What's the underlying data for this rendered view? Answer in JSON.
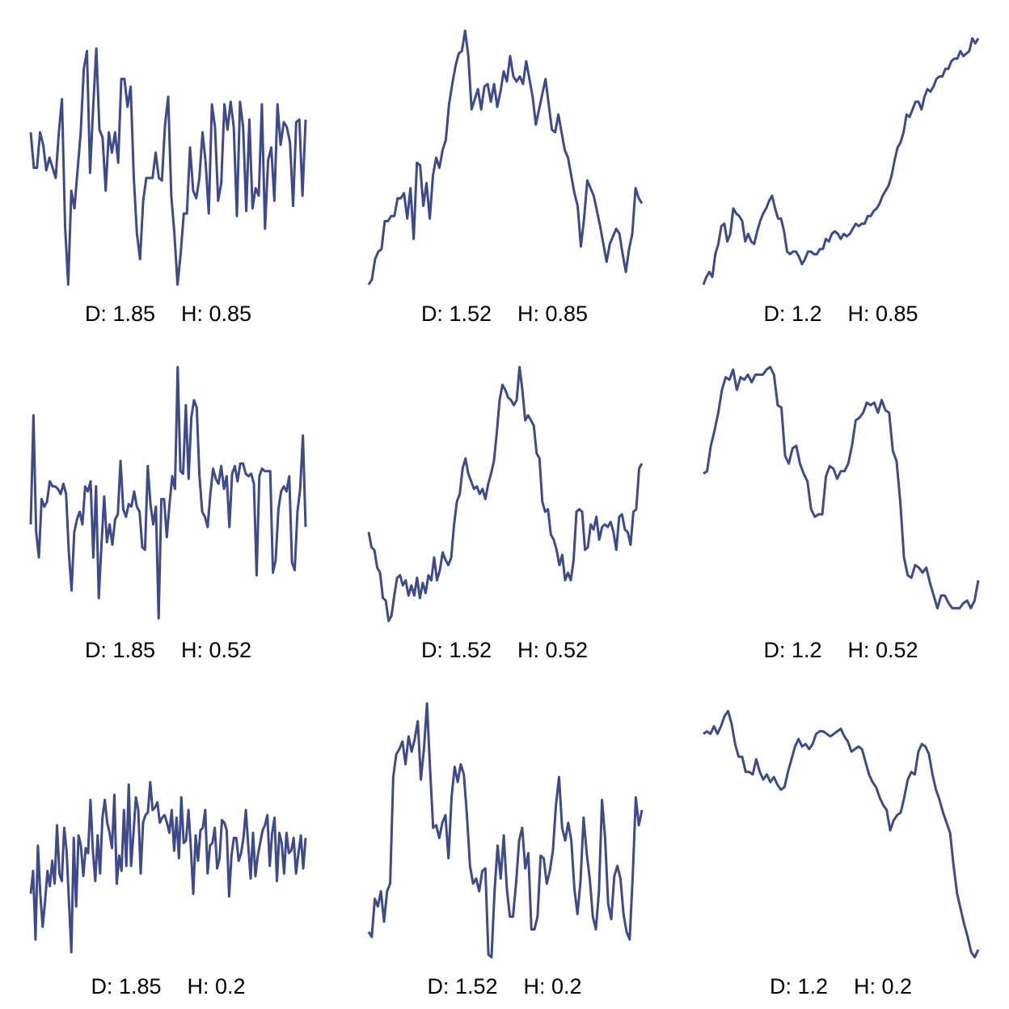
{
  "chart_data": [
    {
      "type": "line",
      "caption_d": "D: 1.85",
      "caption_h": "H: 0.85",
      "color": "#3e4a89",
      "series": [
        {
          "values": [
            0.6,
            0.46,
            0.46,
            0.6,
            0.55,
            0.45,
            0.5,
            0.46,
            0.42,
            0.6,
            0.73,
            0.23,
            0.0,
            0.37,
            0.3,
            0.45,
            0.6,
            0.85,
            0.92,
            0.44,
            0.7,
            0.93,
            0.61,
            0.58,
            0.37,
            0.6,
            0.52,
            0.6,
            0.48,
            0.81,
            0.81,
            0.7,
            0.78,
            0.42,
            0.2,
            0.1,
            0.33,
            0.42,
            0.42,
            0.42,
            0.52,
            0.42,
            0.41,
            0.63,
            0.74,
            0.35,
            0.2,
            0.0,
            0.12,
            0.28,
            0.28,
            0.54,
            0.37,
            0.34,
            0.42,
            0.6,
            0.48,
            0.28,
            0.71,
            0.62,
            0.33,
            0.4,
            0.71,
            0.61,
            0.72,
            0.62,
            0.27,
            0.72,
            0.62,
            0.29,
            0.65,
            0.3,
            0.38,
            0.35,
            0.71,
            0.22,
            0.49,
            0.54,
            0.33,
            0.71,
            0.55,
            0.64,
            0.62,
            0.56,
            0.31,
            0.64,
            0.65,
            0.35,
            0.65
          ]
        }
      ]
    },
    {
      "type": "line",
      "caption_d": "D: 1.52",
      "caption_h": "H: 0.85",
      "color": "#3e4a89",
      "series": [
        {
          "values": [
            0.0,
            0.02,
            0.1,
            0.13,
            0.14,
            0.25,
            0.25,
            0.27,
            0.27,
            0.34,
            0.34,
            0.36,
            0.26,
            0.38,
            0.18,
            0.48,
            0.47,
            0.31,
            0.4,
            0.26,
            0.43,
            0.5,
            0.46,
            0.53,
            0.57,
            0.71,
            0.79,
            0.86,
            0.91,
            0.92,
            1.0,
            0.9,
            0.69,
            0.73,
            0.77,
            0.69,
            0.78,
            0.79,
            0.72,
            0.79,
            0.7,
            0.76,
            0.84,
            0.8,
            0.9,
            0.82,
            0.8,
            0.82,
            0.79,
            0.88,
            0.81,
            0.74,
            0.63,
            0.69,
            0.75,
            0.81,
            0.71,
            0.61,
            0.6,
            0.67,
            0.6,
            0.53,
            0.5,
            0.43,
            0.36,
            0.31,
            0.15,
            0.26,
            0.41,
            0.38,
            0.35,
            0.29,
            0.23,
            0.16,
            0.09,
            0.16,
            0.19,
            0.22,
            0.2,
            0.12,
            0.05,
            0.14,
            0.2,
            0.38,
            0.34,
            0.32
          ]
        }
      ]
    },
    {
      "type": "line",
      "caption_d": "D: 1.2",
      "caption_h": "H: 0.85",
      "color": "#3e4a89",
      "series": [
        {
          "values": [
            0.0,
            0.03,
            0.05,
            0.03,
            0.12,
            0.16,
            0.23,
            0.24,
            0.17,
            0.2,
            0.3,
            0.28,
            0.27,
            0.25,
            0.17,
            0.2,
            0.17,
            0.16,
            0.21,
            0.25,
            0.28,
            0.3,
            0.33,
            0.35,
            0.3,
            0.26,
            0.26,
            0.21,
            0.13,
            0.12,
            0.13,
            0.13,
            0.11,
            0.08,
            0.1,
            0.13,
            0.13,
            0.12,
            0.12,
            0.14,
            0.14,
            0.18,
            0.17,
            0.2,
            0.21,
            0.2,
            0.18,
            0.2,
            0.19,
            0.2,
            0.22,
            0.24,
            0.23,
            0.24,
            0.24,
            0.27,
            0.27,
            0.29,
            0.3,
            0.32,
            0.35,
            0.37,
            0.39,
            0.43,
            0.49,
            0.54,
            0.56,
            0.6,
            0.67,
            0.66,
            0.69,
            0.72,
            0.72,
            0.69,
            0.74,
            0.77,
            0.76,
            0.78,
            0.81,
            0.82,
            0.82,
            0.85,
            0.85,
            0.88,
            0.89,
            0.89,
            0.92,
            0.9,
            0.91,
            0.92,
            0.97,
            0.95,
            0.97
          ]
        }
      ]
    },
    {
      "type": "line",
      "caption_d": "D: 1.85",
      "caption_h": "H: 0.52",
      "color": "#3e4a89",
      "series": [
        {
          "values": [
            0.38,
            0.81,
            0.35,
            0.25,
            0.48,
            0.45,
            0.47,
            0.55,
            0.53,
            0.53,
            0.52,
            0.5,
            0.54,
            0.5,
            0.27,
            0.12,
            0.35,
            0.4,
            0.43,
            0.38,
            0.53,
            0.51,
            0.55,
            0.25,
            0.53,
            0.09,
            0.3,
            0.49,
            0.31,
            0.38,
            0.3,
            0.4,
            0.42,
            0.63,
            0.44,
            0.41,
            0.46,
            0.45,
            0.51,
            0.45,
            0.43,
            0.29,
            0.28,
            0.61,
            0.46,
            0.38,
            0.45,
            0.01,
            0.48,
            0.48,
            0.33,
            0.46,
            0.57,
            0.52,
            1.0,
            0.59,
            0.58,
            0.85,
            0.56,
            0.8,
            0.87,
            0.84,
            0.57,
            0.43,
            0.41,
            0.37,
            0.5,
            0.6,
            0.56,
            0.54,
            0.61,
            0.52,
            0.57,
            0.37,
            0.58,
            0.61,
            0.55,
            0.62,
            0.62,
            0.58,
            0.57,
            0.58,
            0.54,
            0.18,
            0.57,
            0.6,
            0.59,
            0.59,
            0.59,
            0.19,
            0.24,
            0.44,
            0.51,
            0.53,
            0.51,
            0.57,
            0.23,
            0.2,
            0.43,
            0.52,
            0.73,
            0.37
          ]
        }
      ]
    },
    {
      "type": "line",
      "caption_d": "D: 1.52",
      "caption_h": "H: 0.52",
      "color": "#3e4a89",
      "series": [
        {
          "values": [
            0.35,
            0.29,
            0.28,
            0.21,
            0.19,
            0.09,
            0.08,
            0.0,
            0.02,
            0.1,
            0.17,
            0.18,
            0.14,
            0.16,
            0.1,
            0.14,
            0.1,
            0.17,
            0.09,
            0.15,
            0.11,
            0.18,
            0.16,
            0.25,
            0.16,
            0.2,
            0.27,
            0.24,
            0.22,
            0.25,
            0.38,
            0.47,
            0.5,
            0.6,
            0.64,
            0.58,
            0.55,
            0.52,
            0.53,
            0.5,
            0.52,
            0.48,
            0.54,
            0.58,
            0.63,
            0.74,
            0.87,
            0.93,
            0.91,
            0.88,
            0.87,
            0.85,
            0.87,
            1.0,
            0.91,
            0.79,
            0.81,
            0.79,
            0.77,
            0.66,
            0.64,
            0.47,
            0.43,
            0.44,
            0.34,
            0.32,
            0.28,
            0.22,
            0.26,
            0.16,
            0.19,
            0.16,
            0.24,
            0.43,
            0.44,
            0.43,
            0.28,
            0.29,
            0.38,
            0.36,
            0.41,
            0.32,
            0.37,
            0.38,
            0.37,
            0.39,
            0.35,
            0.28,
            0.41,
            0.42,
            0.36,
            0.35,
            0.3,
            0.43,
            0.44,
            0.6,
            0.62
          ]
        }
      ]
    },
    {
      "type": "line",
      "caption_d": "D: 1.2",
      "caption_h": "H: 0.52",
      "color": "#3e4a89",
      "series": [
        {
          "values": [
            0.58,
            0.59,
            0.69,
            0.75,
            0.82,
            0.91,
            0.96,
            0.95,
            0.99,
            0.91,
            0.96,
            0.95,
            0.97,
            0.94,
            0.97,
            0.97,
            0.97,
            0.99,
            1.0,
            0.97,
            0.85,
            0.84,
            0.65,
            0.62,
            0.68,
            0.69,
            0.62,
            0.58,
            0.55,
            0.44,
            0.41,
            0.42,
            0.42,
            0.57,
            0.61,
            0.6,
            0.56,
            0.59,
            0.59,
            0.62,
            0.69,
            0.79,
            0.8,
            0.82,
            0.86,
            0.85,
            0.86,
            0.82,
            0.87,
            0.83,
            0.82,
            0.67,
            0.63,
            0.47,
            0.25,
            0.18,
            0.17,
            0.22,
            0.21,
            0.19,
            0.21,
            0.15,
            0.1,
            0.05,
            0.1,
            0.1,
            0.07,
            0.05,
            0.05,
            0.05,
            0.07,
            0.08,
            0.05,
            0.08,
            0.16
          ]
        }
      ]
    },
    {
      "type": "line",
      "caption_d": "D: 1.85",
      "caption_h": "H: 0.2",
      "color": "#3e4a89",
      "series": [
        {
          "values": [
            0.25,
            0.34,
            0.07,
            0.44,
            0.25,
            0.12,
            0.22,
            0.34,
            0.28,
            0.38,
            0.29,
            0.52,
            0.33,
            0.3,
            0.51,
            0.42,
            0.22,
            0.02,
            0.47,
            0.2,
            0.48,
            0.44,
            0.32,
            0.43,
            0.41,
            0.62,
            0.42,
            0.3,
            0.48,
            0.33,
            0.55,
            0.62,
            0.53,
            0.49,
            0.43,
            0.64,
            0.29,
            0.4,
            0.34,
            0.58,
            0.36,
            0.68,
            0.36,
            0.49,
            0.63,
            0.58,
            0.33,
            0.53,
            0.56,
            0.57,
            0.69,
            0.58,
            0.59,
            0.61,
            0.53,
            0.55,
            0.56,
            0.53,
            0.49,
            0.58,
            0.42,
            0.55,
            0.39,
            0.63,
            0.45,
            0.46,
            0.58,
            0.43,
            0.25,
            0.48,
            0.38,
            0.5,
            0.51,
            0.58,
            0.33,
            0.44,
            0.45,
            0.51,
            0.35,
            0.39,
            0.54,
            0.53,
            0.5,
            0.24,
            0.4,
            0.47,
            0.47,
            0.38,
            0.41,
            0.47,
            0.58,
            0.44,
            0.31,
            0.49,
            0.32,
            0.4,
            0.45,
            0.5,
            0.52,
            0.56,
            0.36,
            0.49,
            0.55,
            0.3,
            0.49,
            0.45,
            0.33,
            0.49,
            0.41,
            0.42,
            0.47,
            0.33,
            0.41,
            0.48,
            0.35,
            0.47
          ]
        }
      ]
    },
    {
      "type": "line",
      "caption_d": "D: 1.52",
      "caption_h": "H: 0.2",
      "color": "#3e4a89",
      "series": [
        {
          "values": [
            0.1,
            0.08,
            0.23,
            0.2,
            0.26,
            0.14,
            0.26,
            0.29,
            0.71,
            0.8,
            0.82,
            0.85,
            0.76,
            0.87,
            0.81,
            0.86,
            0.93,
            0.7,
            0.82,
            1.0,
            0.74,
            0.51,
            0.52,
            0.47,
            0.53,
            0.56,
            0.39,
            0.63,
            0.75,
            0.69,
            0.76,
            0.72,
            0.56,
            0.36,
            0.29,
            0.31,
            0.26,
            0.34,
            0.35,
            0.01,
            0.0,
            0.26,
            0.44,
            0.31,
            0.48,
            0.27,
            0.16,
            0.16,
            0.29,
            0.46,
            0.51,
            0.35,
            0.41,
            0.11,
            0.11,
            0.16,
            0.4,
            0.39,
            0.29,
            0.34,
            0.42,
            0.6,
            0.71,
            0.51,
            0.46,
            0.53,
            0.46,
            0.27,
            0.17,
            0.3,
            0.55,
            0.41,
            0.31,
            0.16,
            0.11,
            0.26,
            0.62,
            0.47,
            0.21,
            0.15,
            0.32,
            0.36,
            0.31,
            0.17,
            0.1,
            0.07,
            0.32,
            0.63,
            0.52,
            0.58
          ]
        }
      ]
    },
    {
      "type": "line",
      "caption_d": "D: 1.2",
      "caption_h": "H: 0.2",
      "color": "#3e4a89",
      "series": [
        {
          "values": [
            0.88,
            0.89,
            0.88,
            0.91,
            0.88,
            0.91,
            0.95,
            0.97,
            0.92,
            0.84,
            0.79,
            0.79,
            0.73,
            0.73,
            0.72,
            0.78,
            0.73,
            0.7,
            0.72,
            0.69,
            0.71,
            0.68,
            0.66,
            0.67,
            0.73,
            0.78,
            0.83,
            0.86,
            0.83,
            0.84,
            0.82,
            0.84,
            0.88,
            0.89,
            0.89,
            0.88,
            0.87,
            0.88,
            0.89,
            0.9,
            0.87,
            0.85,
            0.81,
            0.82,
            0.83,
            0.82,
            0.77,
            0.72,
            0.69,
            0.67,
            0.63,
            0.6,
            0.58,
            0.5,
            0.54,
            0.56,
            0.57,
            0.63,
            0.7,
            0.73,
            0.72,
            0.81,
            0.84,
            0.83,
            0.8,
            0.72,
            0.66,
            0.62,
            0.57,
            0.53,
            0.49,
            0.36,
            0.25,
            0.19,
            0.13,
            0.08,
            0.02,
            0.0,
            0.03
          ]
        }
      ]
    }
  ]
}
